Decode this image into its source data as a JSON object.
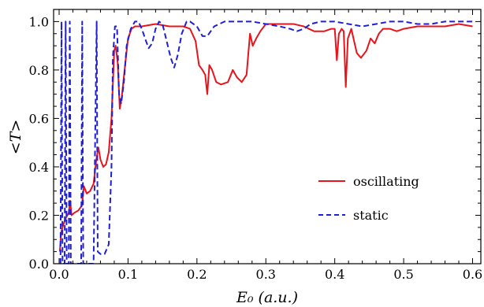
{
  "chart_data": {
    "type": "line",
    "title": "",
    "xlabel": "E₀ (a.u.)",
    "ylabel": "<T>",
    "xlim": [
      -0.008,
      0.612
    ],
    "ylim": [
      0.0,
      1.05
    ],
    "xticks": [
      0.0,
      0.1,
      0.2,
      0.3,
      0.4,
      0.5,
      0.6
    ],
    "xtick_labels": [
      "0.0",
      "0.1",
      "0.2",
      "0.3",
      "0.4",
      "0.5",
      "0.6"
    ],
    "yticks": [
      0.0,
      0.2,
      0.4,
      0.6,
      0.8,
      1.0
    ],
    "ytick_labels": [
      "0.0",
      "0.2",
      "0.4",
      "0.6",
      "0.8",
      "1.0"
    ],
    "grid": false,
    "legend_position": "center-right",
    "series": [
      {
        "name": "oscillating",
        "color": "#e8141c",
        "style": "solid",
        "points": [
          [
            0.001,
            0.05
          ],
          [
            0.003,
            0.13
          ],
          [
            0.006,
            0.16
          ],
          [
            0.01,
            0.19
          ],
          [
            0.014,
            0.21
          ],
          [
            0.016,
            0.26
          ],
          [
            0.018,
            0.2
          ],
          [
            0.022,
            0.21
          ],
          [
            0.028,
            0.22
          ],
          [
            0.033,
            0.24
          ],
          [
            0.036,
            0.32
          ],
          [
            0.04,
            0.29
          ],
          [
            0.045,
            0.3
          ],
          [
            0.05,
            0.33
          ],
          [
            0.054,
            0.43
          ],
          [
            0.057,
            0.48
          ],
          [
            0.06,
            0.43
          ],
          [
            0.064,
            0.4
          ],
          [
            0.068,
            0.41
          ],
          [
            0.072,
            0.46
          ],
          [
            0.076,
            0.6
          ],
          [
            0.08,
            0.88
          ],
          [
            0.082,
            0.9
          ],
          [
            0.085,
            0.83
          ],
          [
            0.088,
            0.64
          ],
          [
            0.091,
            0.69
          ],
          [
            0.095,
            0.8
          ],
          [
            0.1,
            0.93
          ],
          [
            0.105,
            0.97
          ],
          [
            0.11,
            0.98
          ],
          [
            0.12,
            0.98
          ],
          [
            0.14,
            0.99
          ],
          [
            0.16,
            0.98
          ],
          [
            0.18,
            0.98
          ],
          [
            0.19,
            0.97
          ],
          [
            0.198,
            0.92
          ],
          [
            0.203,
            0.82
          ],
          [
            0.208,
            0.8
          ],
          [
            0.212,
            0.78
          ],
          [
            0.215,
            0.7
          ],
          [
            0.218,
            0.82
          ],
          [
            0.222,
            0.8
          ],
          [
            0.228,
            0.75
          ],
          [
            0.235,
            0.74
          ],
          [
            0.245,
            0.75
          ],
          [
            0.252,
            0.8
          ],
          [
            0.258,
            0.77
          ],
          [
            0.265,
            0.75
          ],
          [
            0.272,
            0.78
          ],
          [
            0.277,
            0.95
          ],
          [
            0.281,
            0.9
          ],
          [
            0.286,
            0.93
          ],
          [
            0.292,
            0.96
          ],
          [
            0.3,
            0.99
          ],
          [
            0.32,
            0.99
          ],
          [
            0.34,
            0.99
          ],
          [
            0.355,
            0.98
          ],
          [
            0.37,
            0.96
          ],
          [
            0.385,
            0.96
          ],
          [
            0.395,
            0.97
          ],
          [
            0.4,
            0.97
          ],
          [
            0.403,
            0.84
          ],
          [
            0.406,
            0.95
          ],
          [
            0.41,
            0.97
          ],
          [
            0.413,
            0.96
          ],
          [
            0.416,
            0.73
          ],
          [
            0.419,
            0.93
          ],
          [
            0.424,
            0.97
          ],
          [
            0.432,
            0.87
          ],
          [
            0.438,
            0.85
          ],
          [
            0.446,
            0.88
          ],
          [
            0.452,
            0.93
          ],
          [
            0.458,
            0.91
          ],
          [
            0.464,
            0.95
          ],
          [
            0.47,
            0.97
          ],
          [
            0.48,
            0.97
          ],
          [
            0.49,
            0.96
          ],
          [
            0.5,
            0.97
          ],
          [
            0.52,
            0.98
          ],
          [
            0.54,
            0.98
          ],
          [
            0.56,
            0.98
          ],
          [
            0.58,
            0.99
          ],
          [
            0.6,
            0.98
          ]
        ]
      },
      {
        "name": "static",
        "color": "#1f1fd6",
        "style": "dashed",
        "points": [
          [
            0.002,
            0.0
          ],
          [
            0.0035,
            1.0
          ],
          [
            0.005,
            0.0
          ],
          [
            0.008,
            0.0
          ],
          [
            0.0095,
            1.0
          ],
          [
            0.011,
            0.0
          ],
          [
            0.014,
            0.0
          ],
          [
            0.0155,
            1.0
          ],
          [
            0.017,
            0.0
          ],
          [
            0.025,
            0.0
          ],
          [
            0.032,
            0.0
          ],
          [
            0.0335,
            1.0
          ],
          [
            0.035,
            0.0
          ],
          [
            0.042,
            0.0
          ],
          [
            0.05,
            0.0
          ],
          [
            0.0545,
            1.0
          ],
          [
            0.056,
            0.05
          ],
          [
            0.06,
            0.04
          ],
          [
            0.066,
            0.04
          ],
          [
            0.072,
            0.08
          ],
          [
            0.076,
            0.4
          ],
          [
            0.078,
            0.85
          ],
          [
            0.081,
            0.98
          ],
          [
            0.084,
            0.98
          ],
          [
            0.087,
            0.7
          ],
          [
            0.09,
            0.66
          ],
          [
            0.094,
            0.75
          ],
          [
            0.098,
            0.9
          ],
          [
            0.104,
            0.97
          ],
          [
            0.11,
            1.0
          ],
          [
            0.115,
            1.0
          ],
          [
            0.12,
            0.97
          ],
          [
            0.126,
            0.92
          ],
          [
            0.13,
            0.89
          ],
          [
            0.135,
            0.91
          ],
          [
            0.14,
            0.97
          ],
          [
            0.145,
            1.0
          ],
          [
            0.15,
            0.99
          ],
          [
            0.156,
            0.92
          ],
          [
            0.162,
            0.85
          ],
          [
            0.167,
            0.81
          ],
          [
            0.172,
            0.86
          ],
          [
            0.178,
            0.95
          ],
          [
            0.185,
            1.0
          ],
          [
            0.19,
            1.0
          ],
          [
            0.2,
            0.98
          ],
          [
            0.208,
            0.94
          ],
          [
            0.215,
            0.94
          ],
          [
            0.225,
            0.98
          ],
          [
            0.24,
            1.0
          ],
          [
            0.26,
            1.0
          ],
          [
            0.28,
            1.0
          ],
          [
            0.3,
            0.99
          ],
          [
            0.32,
            0.98
          ],
          [
            0.335,
            0.97
          ],
          [
            0.345,
            0.96
          ],
          [
            0.355,
            0.97
          ],
          [
            0.365,
            0.99
          ],
          [
            0.38,
            1.0
          ],
          [
            0.4,
            1.0
          ],
          [
            0.42,
            0.99
          ],
          [
            0.44,
            0.98
          ],
          [
            0.46,
            0.99
          ],
          [
            0.48,
            1.0
          ],
          [
            0.5,
            1.0
          ],
          [
            0.52,
            0.99
          ],
          [
            0.54,
            0.99
          ],
          [
            0.56,
            1.0
          ],
          [
            0.58,
            1.0
          ],
          [
            0.6,
            1.0
          ]
        ]
      }
    ]
  }
}
